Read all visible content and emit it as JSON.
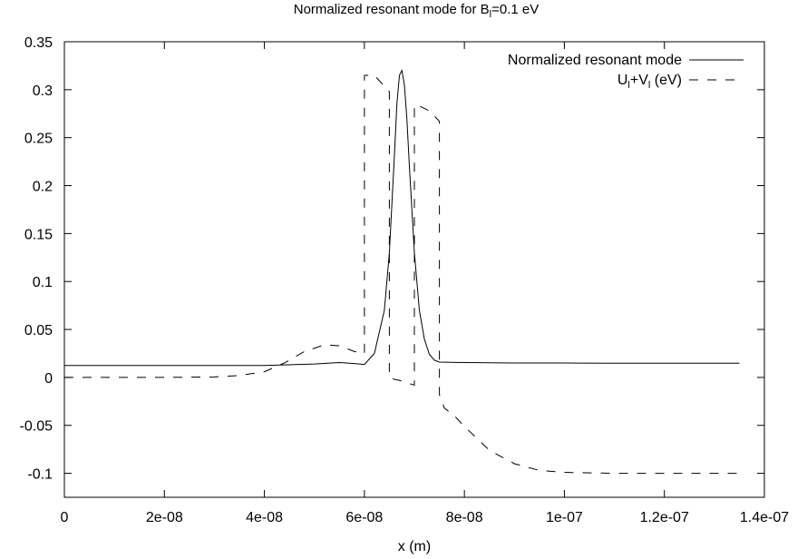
{
  "chart_data": {
    "type": "line",
    "title": {
      "main": "Normalized resonant mode for B",
      "sub": "l",
      "tail": "=0.1 eV"
    },
    "xlabel": "x (m)",
    "ylabel": "",
    "xlim": [
      0,
      1.4e-07
    ],
    "ylim": [
      -0.125,
      0.35
    ],
    "x_ticks": [
      {
        "value": 0,
        "label": "0"
      },
      {
        "value": 2e-08,
        "label": "2e-08"
      },
      {
        "value": 4e-08,
        "label": "4e-08"
      },
      {
        "value": 6e-08,
        "label": "6e-08"
      },
      {
        "value": 8e-08,
        "label": "8e-08"
      },
      {
        "value": 1e-07,
        "label": "1e-07"
      },
      {
        "value": 1.2e-07,
        "label": "1.2e-07"
      },
      {
        "value": 1.4e-07,
        "label": "1.4e-07"
      }
    ],
    "y_ticks": [
      {
        "value": 0.35,
        "label": "0.35"
      },
      {
        "value": 0.3,
        "label": "0.3"
      },
      {
        "value": 0.25,
        "label": "0.25"
      },
      {
        "value": 0.2,
        "label": "0.2"
      },
      {
        "value": 0.15,
        "label": "0.15"
      },
      {
        "value": 0.1,
        "label": "0.1"
      },
      {
        "value": 0.05,
        "label": "0.05"
      },
      {
        "value": 0,
        "label": "0"
      },
      {
        "value": -0.05,
        "label": "-0.05"
      },
      {
        "value": -0.1,
        "label": "-0.1"
      }
    ],
    "legend_position": "top-right",
    "series": [
      {
        "name": "Normalized resonant mode",
        "style": "solid",
        "color": "#000000",
        "x": [
          0,
          1e-08,
          2e-08,
          3e-08,
          4e-08,
          5e-08,
          5.5e-08,
          5.8e-08,
          6e-08,
          6.2e-08,
          6.4e-08,
          6.5e-08,
          6.6e-08,
          6.65e-08,
          6.7e-08,
          6.75e-08,
          6.8e-08,
          6.85e-08,
          6.9e-08,
          7e-08,
          7.1e-08,
          7.2e-08,
          7.3e-08,
          7.4e-08,
          7.5e-08,
          8e-08,
          9e-08,
          1e-07,
          1.1e-07,
          1.2e-07,
          1.3e-07,
          1.35e-07
        ],
        "y": [
          0.0125,
          0.0125,
          0.0125,
          0.0125,
          0.0125,
          0.014,
          0.0155,
          0.0145,
          0.0135,
          0.025,
          0.07,
          0.13,
          0.23,
          0.285,
          0.315,
          0.32,
          0.305,
          0.27,
          0.22,
          0.13,
          0.07,
          0.04,
          0.024,
          0.018,
          0.016,
          0.0155,
          0.015,
          0.015,
          0.0148,
          0.0148,
          0.0148,
          0.0148
        ]
      },
      {
        "name": "U_l+V_l (eV)",
        "style": "dashed",
        "color": "#000000",
        "x": [
          0,
          1e-08,
          2e-08,
          3e-08,
          3.5e-08,
          4e-08,
          4.4e-08,
          4.8e-08,
          5.2e-08,
          5.5e-08,
          5.8e-08,
          6e-08,
          6e-08,
          6.2e-08,
          6.5e-08,
          6.5e-08,
          6.55e-08,
          6.6e-08,
          6.7e-08,
          6.8e-08,
          7e-08,
          7e-08,
          7.1e-08,
          7.3e-08,
          7.5e-08,
          7.5e-08,
          7.6e-08,
          7.8e-08,
          8e-08,
          8.5e-08,
          9e-08,
          9.5e-08,
          1e-07,
          1.1e-07,
          1.2e-07,
          1.3e-07,
          1.35e-07
        ],
        "y": [
          0,
          0,
          0,
          0.0005,
          0.002,
          0.006,
          0.015,
          0.027,
          0.034,
          0.033,
          0.027,
          0.025,
          0.315,
          0.315,
          0.298,
          0,
          -0.001,
          -0.002,
          -0.003,
          -0.005,
          -0.008,
          0.284,
          0.283,
          0.278,
          0.267,
          -0.018,
          -0.032,
          -0.04,
          -0.051,
          -0.076,
          -0.09,
          -0.097,
          -0.099,
          -0.1,
          -0.1,
          -0.1,
          -0.1
        ]
      }
    ]
  },
  "legend": {
    "entry1": "Normalized resonant mode",
    "entry2": {
      "a": "U",
      "a_sub": "l",
      "b": "+V",
      "b_sub": "l",
      "c": " (eV)"
    }
  }
}
